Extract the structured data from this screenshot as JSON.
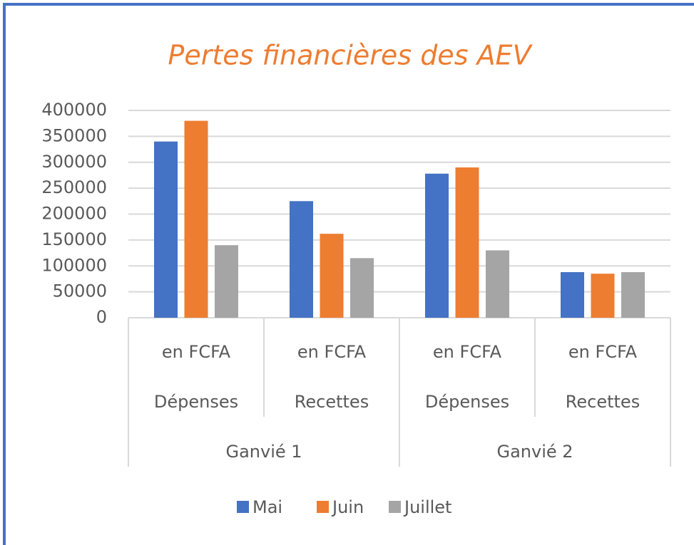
{
  "chart_data": {
    "type": "bar",
    "title": "Pertes financières des AEV",
    "categories": [
      "en FCFA",
      "en FCFA",
      "en FCFA",
      "en FCFA"
    ],
    "subgroups": [
      "Dépenses",
      "Recettes",
      "Dépenses",
      "Recettes"
    ],
    "groups": [
      "Ganvié 1",
      "Ganvié 2"
    ],
    "series": [
      {
        "name": "Mai",
        "color": "#4472c4",
        "values": [
          340000,
          225000,
          278000,
          88000
        ]
      },
      {
        "name": "Juin",
        "color": "#ed7d31",
        "values": [
          380000,
          162000,
          290000,
          85000
        ]
      },
      {
        "name": "Juillet",
        "color": "#a5a5a5",
        "values": [
          140000,
          115000,
          130000,
          88000
        ]
      }
    ],
    "ylim": [
      0,
      400000
    ],
    "yticks": [
      0,
      50000,
      100000,
      150000,
      200000,
      250000,
      300000,
      350000,
      400000
    ],
    "grid": true,
    "legend": "bottom"
  }
}
